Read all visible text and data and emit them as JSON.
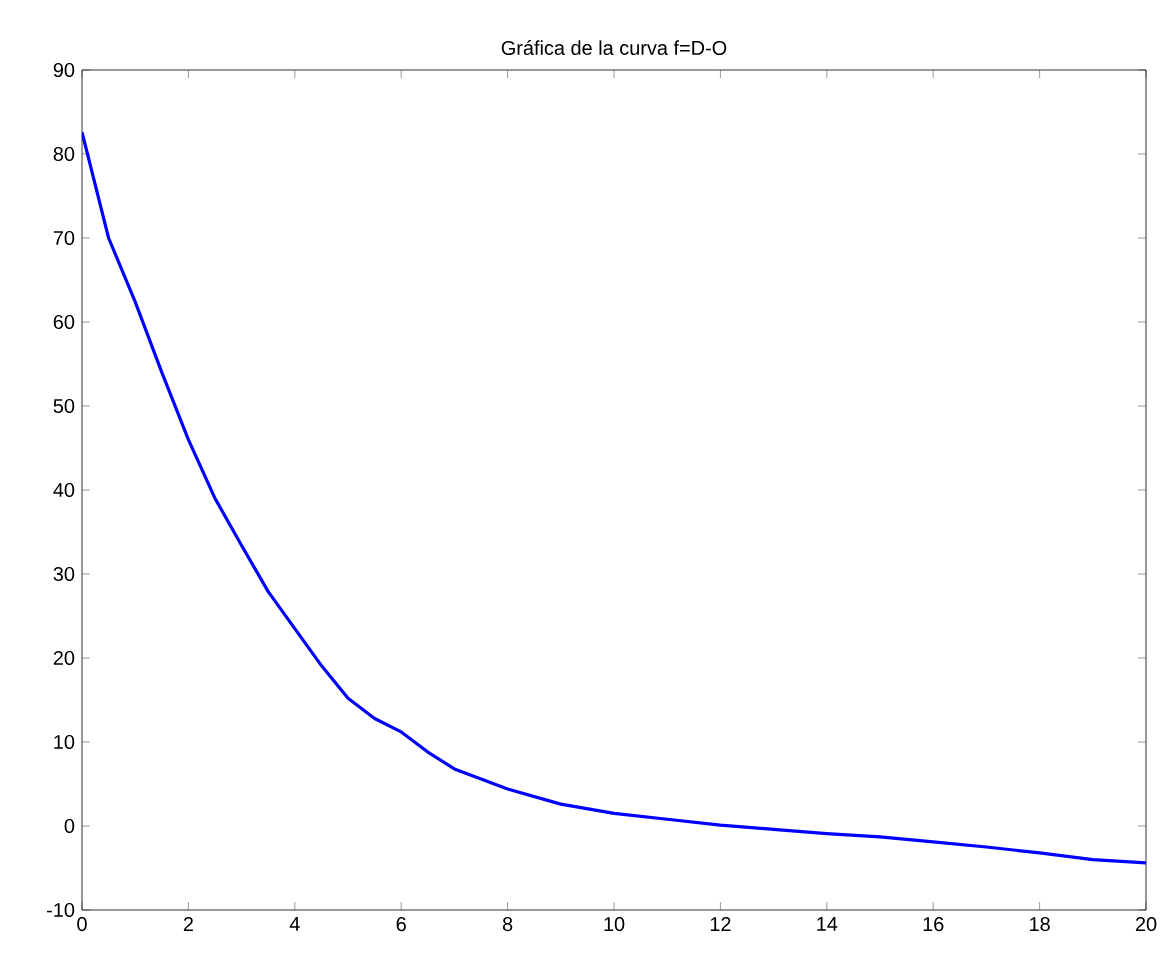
{
  "chart_data": {
    "type": "line",
    "title": "Gráfica de la curva f=D-O",
    "x": [
      0,
      0.5,
      1,
      1.5,
      2,
      2.5,
      3,
      3.5,
      4,
      4.5,
      5,
      5.5,
      6,
      6.5,
      7,
      8,
      9,
      10,
      11,
      12,
      13,
      14,
      15,
      16,
      17,
      18,
      19,
      20
    ],
    "series": [
      {
        "color": "#0000ff",
        "values": [
          82.6,
          70,
          62.4,
          54,
          46,
          39,
          33.4,
          27.9,
          23.5,
          19.1,
          15.2,
          12.8,
          11.2,
          8.8,
          6.8,
          4.4,
          2.6,
          1.5,
          0.8,
          0.1,
          -0.4,
          -0.9,
          -1.3,
          -1.9,
          -2.5,
          -3.2,
          -4,
          -4.4
        ]
      }
    ],
    "xlim": [
      0,
      20
    ],
    "ylim": [
      -10,
      90
    ],
    "xticks": [
      0,
      2,
      4,
      6,
      8,
      10,
      12,
      14,
      16,
      18,
      20
    ],
    "yticks": [
      -10,
      0,
      10,
      20,
      30,
      40,
      50,
      60,
      70,
      80,
      90
    ],
    "grid": false,
    "legend": false,
    "marker": "none",
    "line_style": "solid"
  }
}
